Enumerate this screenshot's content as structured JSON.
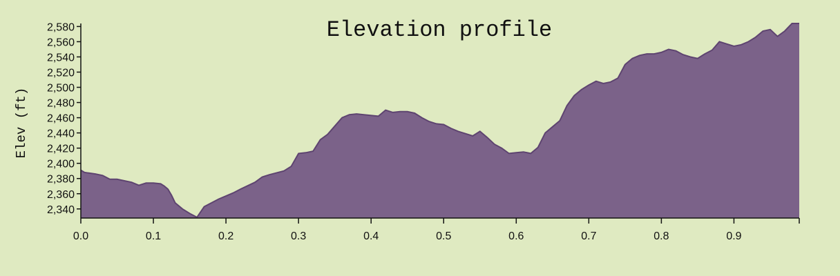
{
  "chart_data": {
    "type": "area",
    "title": "Elevation profile",
    "xlabel": "",
    "ylabel": "Elev (ft)",
    "xlim": [
      0,
      0.99
    ],
    "ylim": [
      2328,
      2584
    ],
    "x_ticks": [
      0.0,
      0.1,
      0.2,
      0.3,
      0.4,
      0.5,
      0.6,
      0.7,
      0.8,
      0.9
    ],
    "x_tick_labels": [
      "0.0",
      "0.1",
      "0.2",
      "0.3",
      "0.4",
      "0.5",
      "0.6",
      "0.7",
      "0.8",
      "0.9"
    ],
    "y_ticks": [
      2340,
      2360,
      2380,
      2400,
      2420,
      2440,
      2460,
      2480,
      2500,
      2520,
      2540,
      2560,
      2580
    ],
    "y_tick_labels": [
      "2,340",
      "2,360",
      "2,380",
      "2,400",
      "2,420",
      "2,440",
      "2,460",
      "2,480",
      "2,500",
      "2,520",
      "2,540",
      "2,560",
      "2,580"
    ],
    "grid": false,
    "colors": {
      "fill": "#7b6289",
      "stroke": "#5e4470",
      "background": "#dfeac1",
      "axis": "#111111"
    },
    "x": [
      0.0,
      0.005,
      0.02,
      0.03,
      0.04,
      0.05,
      0.06,
      0.07,
      0.08,
      0.09,
      0.1,
      0.11,
      0.115,
      0.12,
      0.125,
      0.13,
      0.14,
      0.15,
      0.16,
      0.17,
      0.18,
      0.19,
      0.2,
      0.21,
      0.22,
      0.24,
      0.25,
      0.26,
      0.28,
      0.29,
      0.3,
      0.31,
      0.32,
      0.33,
      0.34,
      0.35,
      0.36,
      0.37,
      0.38,
      0.39,
      0.41,
      0.42,
      0.43,
      0.44,
      0.45,
      0.46,
      0.47,
      0.48,
      0.49,
      0.5,
      0.51,
      0.52,
      0.53,
      0.54,
      0.55,
      0.56,
      0.57,
      0.58,
      0.59,
      0.6,
      0.61,
      0.62,
      0.63,
      0.64,
      0.65,
      0.66,
      0.67,
      0.68,
      0.69,
      0.7,
      0.71,
      0.72,
      0.73,
      0.74,
      0.75,
      0.76,
      0.77,
      0.78,
      0.79,
      0.8,
      0.81,
      0.82,
      0.83,
      0.84,
      0.85,
      0.86,
      0.87,
      0.88,
      0.89,
      0.9,
      0.91,
      0.92,
      0.93,
      0.94,
      0.95,
      0.96,
      0.97,
      0.98,
      0.99
    ],
    "values": [
      2391,
      2388,
      2386,
      2384,
      2379,
      2379,
      2377,
      2375,
      2371,
      2374,
      2374,
      2373,
      2370,
      2366,
      2358,
      2348,
      2340,
      2334,
      2329,
      2343,
      2348,
      2353,
      2357,
      2361,
      2366,
      2375,
      2382,
      2385,
      2390,
      2396,
      2413,
      2414,
      2416,
      2431,
      2438,
      2449,
      2460,
      2464,
      2465,
      2464,
      2462,
      2470,
      2467,
      2468,
      2468,
      2466,
      2460,
      2455,
      2452,
      2451,
      2446,
      2442,
      2439,
      2436,
      2442,
      2434,
      2425,
      2420,
      2413,
      2414,
      2415,
      2413,
      2421,
      2440,
      2448,
      2456,
      2476,
      2489,
      2497,
      2503,
      2508,
      2505,
      2507,
      2512,
      2530,
      2538,
      2542,
      2544,
      2544,
      2546,
      2550,
      2548,
      2543,
      2540,
      2538,
      2544,
      2549,
      2560,
      2557,
      2554,
      2556,
      2560,
      2566,
      2574,
      2576,
      2567,
      2574,
      2584,
      2584
    ]
  }
}
